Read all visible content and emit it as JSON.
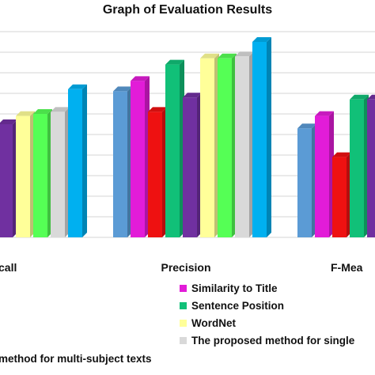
{
  "chart_data": {
    "type": "bar",
    "title": "Graph of Evaluation Results",
    "categories": [
      "Recall",
      "Precision",
      "F-Measure"
    ],
    "category_labels_visible": [
      "call",
      "Precision",
      "F-Mea"
    ],
    "ylim": [
      0,
      100
    ],
    "grid": true,
    "legend_position": "bottom",
    "series": [
      {
        "name": "",
        "color": "#5b9bd5",
        "values": [
          null,
          71,
          53
        ]
      },
      {
        "name": "Similarity to Title",
        "color": "#e21cd8",
        "values": [
          null,
          76,
          59
        ]
      },
      {
        "name": "",
        "color": "#ee1111",
        "values": [
          null,
          61,
          39
        ]
      },
      {
        "name": "Sentence Position",
        "color": "#11c078",
        "values": [
          null,
          84,
          67
        ]
      },
      {
        "name": "",
        "color": "#7030a0",
        "values": [
          55,
          68,
          67
        ]
      },
      {
        "name": "WordNet",
        "color": "#ffff99",
        "values": [
          59,
          87,
          null
        ]
      },
      {
        "name": "",
        "color": "#55ff55",
        "values": [
          60,
          87,
          null
        ]
      },
      {
        "name": "The proposed method for single",
        "color": "#d9d9d9",
        "values": [
          61,
          88,
          null
        ]
      },
      {
        "name": "",
        "color": "#00b0f0",
        "values": [
          72,
          95,
          null
        ]
      }
    ]
  },
  "legend_extra": {
    "label": "method for multi-subject  texts"
  }
}
